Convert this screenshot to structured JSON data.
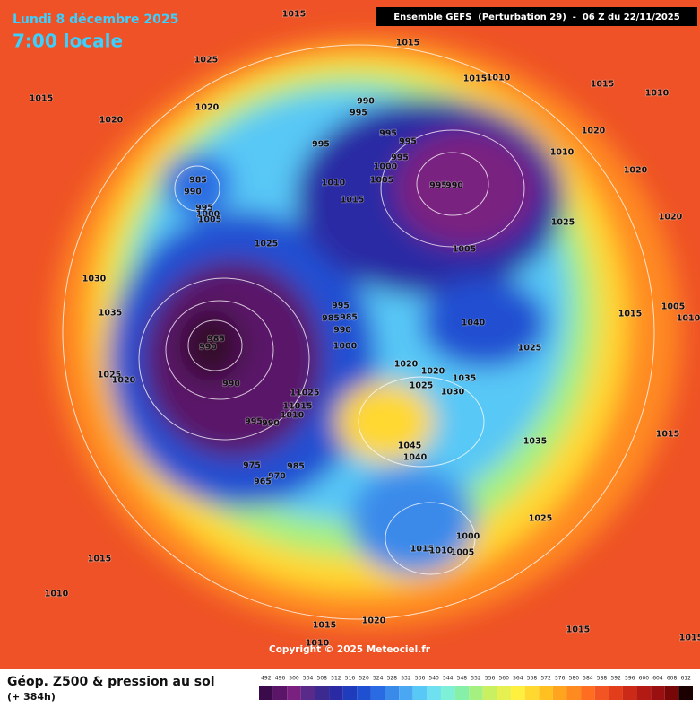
{
  "header": {
    "date": "Lundi 8 décembre 2025",
    "time": "7:00 locale",
    "run": "Ensemble GEFS  (Perturbation 29)  -  06 Z du 22/11/2025"
  },
  "footer": {
    "title": "Géop. Z500 & pression au sol",
    "lead": "(+ 384h)",
    "copyright": "Copyright © 2025 Meteociel.fr"
  },
  "legend": {
    "values": [
      492,
      496,
      500,
      504,
      508,
      512,
      516,
      520,
      524,
      528,
      532,
      536,
      540,
      544,
      548,
      552,
      556,
      560,
      564,
      568,
      572,
      576,
      580,
      584,
      588,
      592,
      596,
      600,
      604,
      608,
      612
    ],
    "colors": [
      "#3a0a4a",
      "#5a1468",
      "#7a2080",
      "#5a2a8a",
      "#3c2a90",
      "#2a2aa4",
      "#1e3cbc",
      "#2050d2",
      "#2a6ae2",
      "#3a8aea",
      "#4aa8f2",
      "#58c8f6",
      "#6ee0f0",
      "#7ef0d8",
      "#86f0a8",
      "#a4f080",
      "#c8f060",
      "#e6f050",
      "#fff040",
      "#ffd830",
      "#ffc020",
      "#ffa41e",
      "#ff8a20",
      "#ff6e20",
      "#f25424",
      "#e23e1c",
      "#cc2a18",
      "#b41a14",
      "#9a1010",
      "#780808",
      "#1a0000"
    ]
  },
  "isobar_labels": [
    1015,
    1025,
    1015,
    1020,
    1020,
    1015,
    1015,
    1010,
    1015,
    1010,
    990,
    995,
    995,
    995,
    995,
    1000,
    1005,
    995,
    1010,
    1015,
    995,
    990,
    1020,
    1010,
    1020,
    1025,
    1020,
    985,
    990,
    995,
    1000,
    1005,
    1025,
    1005,
    1030,
    1035,
    995,
    985,
    985,
    990,
    1000,
    985,
    990,
    1040,
    1015,
    1005,
    1010,
    1025,
    1020,
    1020,
    1025,
    1035,
    1030,
    990,
    1025,
    1020,
    11025,
    11015,
    1010,
    995,
    990,
    1045,
    1040,
    1035,
    975,
    970,
    965,
    985,
    1015,
    1025,
    1000,
    1015,
    1010,
    1005,
    1015,
    1010,
    1015,
    1020,
    1015,
    1010,
    1015
  ]
}
